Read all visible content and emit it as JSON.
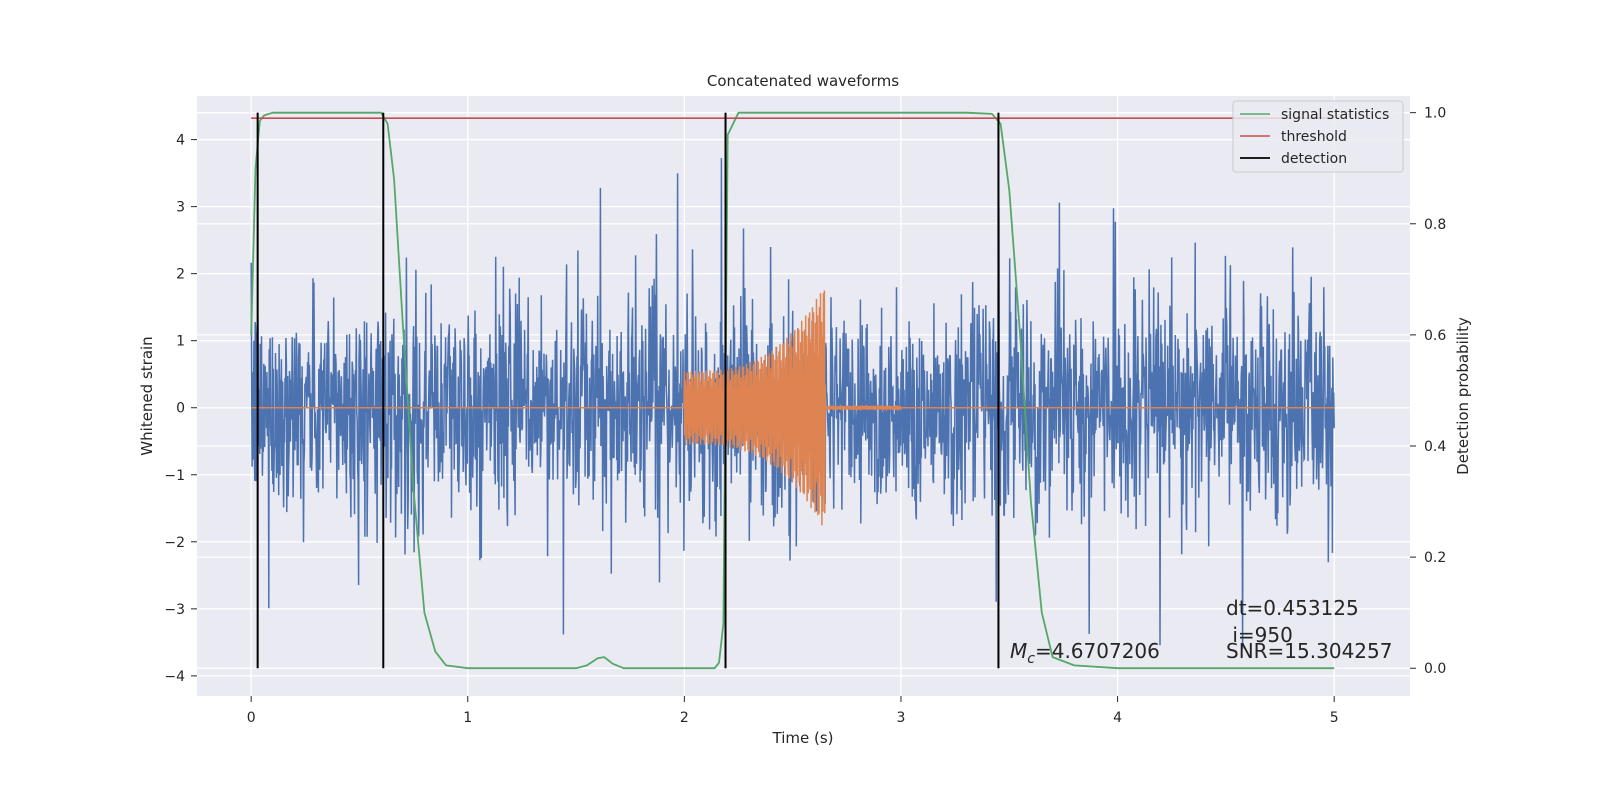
{
  "chart_data": {
    "type": "line",
    "title": "Concatenated waveforms",
    "xlabel": "Time (s)",
    "ylabel_left": "Whitened strain",
    "ylabel_right": "Detection probability",
    "xlim": [
      -0.25,
      5.35
    ],
    "ylim_left": [
      -4.3,
      4.65
    ],
    "ylim_right": [
      -0.05,
      1.03
    ],
    "xticks": [
      0,
      1,
      2,
      3,
      4,
      5
    ],
    "yticks_left": [
      -4,
      -3,
      -2,
      -1,
      0,
      1,
      2,
      3,
      4
    ],
    "yticks_right": [
      0.0,
      0.2,
      0.4,
      0.6,
      0.8,
      1.0
    ],
    "grid": true,
    "legend_position": "top-right",
    "legend": [
      "signal statistics",
      "threshold",
      "detection"
    ],
    "colors": {
      "noise": "#4c72b0",
      "template": "#dd8452",
      "signal_statistics": "#55a868",
      "threshold": "#c44e52",
      "detection": "#000000",
      "background": "#eaeaf2"
    },
    "series": [
      {
        "name": "",
        "axis": "left",
        "description_kind": "whitened strain noise",
        "x_range": [
          0,
          5
        ],
        "typical_amplitude": 1.0,
        "max_peak": 4.2,
        "min_peak": -3.9
      },
      {
        "name": "",
        "axis": "left",
        "description_kind": "chirp template",
        "x_range": [
          0,
          5
        ],
        "chirp_start": 2.0,
        "chirp_end": 2.65,
        "amplitude_start": 0.55,
        "amplitude_end": 1.85,
        "ringdown_end": 3.0
      },
      {
        "name": "signal statistics",
        "axis": "right",
        "x": [
          0.0,
          0.02,
          0.04,
          0.06,
          0.1,
          0.2,
          0.5,
          0.6,
          0.63,
          0.66,
          0.7,
          0.75,
          0.8,
          0.85,
          0.9,
          1.0,
          1.5,
          1.55,
          1.6,
          1.63,
          1.67,
          1.72,
          1.8,
          2.0,
          2.14,
          2.16,
          2.18,
          2.2,
          2.25,
          2.5,
          3.3,
          3.42,
          3.46,
          3.5,
          3.55,
          3.6,
          3.65,
          3.7,
          3.8,
          4.0,
          4.5,
          5.0
        ],
        "y": [
          0.6,
          0.9,
          0.985,
          0.995,
          1.0,
          1.0,
          1.0,
          1.0,
          0.98,
          0.88,
          0.62,
          0.32,
          0.1,
          0.03,
          0.005,
          0.0,
          0.0,
          0.005,
          0.018,
          0.02,
          0.008,
          0.0,
          0.0,
          0.0,
          0.0,
          0.01,
          0.08,
          0.96,
          1.0,
          1.0,
          1.0,
          0.998,
          0.98,
          0.86,
          0.6,
          0.3,
          0.1,
          0.02,
          0.005,
          0.0,
          0.0,
          0.0
        ]
      },
      {
        "name": "threshold",
        "axis": "right",
        "x": [
          0,
          5
        ],
        "y": [
          0.99,
          0.99
        ]
      }
    ],
    "detections": [
      0.03,
      0.61,
      2.19,
      3.45
    ],
    "annotations": {
      "mc_symbol": "M",
      "mc_sub": "c",
      "mc_value": "=4.6707206",
      "dt": "dt=0.453125",
      "i": " i=950",
      "snr": "SNR=15.304257"
    }
  }
}
